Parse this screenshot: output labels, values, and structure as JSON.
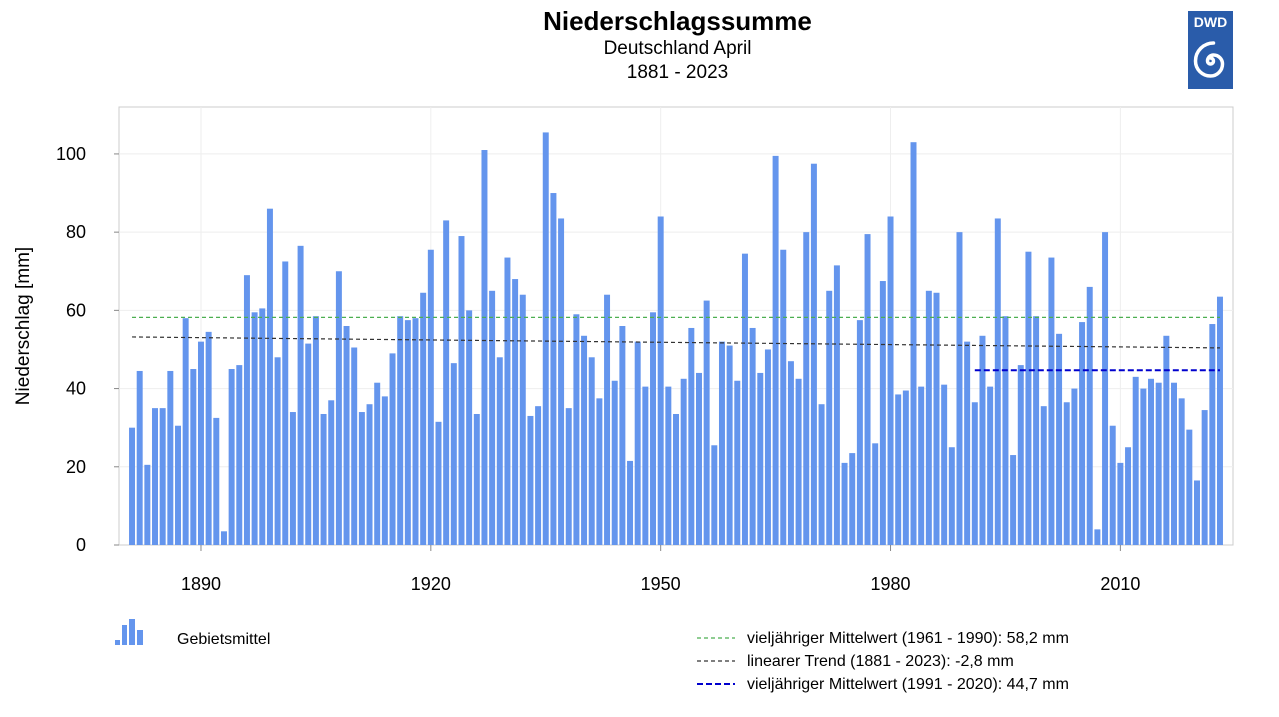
{
  "header": {
    "title": "Niederschlagssumme",
    "subtitle": "Deutschland April",
    "period": "1881 - 2023",
    "logo_text": "DWD"
  },
  "colors": {
    "bar": "#6495ed",
    "mean_1961_1990": "#4caf50",
    "trend": "#333333",
    "mean_1991_2020": "#0000cd",
    "logo_bg": "#2a5caa"
  },
  "legend": {
    "bars_label": "Gebietsmittel",
    "mean_1961_1990_label": "vieljähriger Mittelwert (1961 - 1990): 58,2 mm",
    "trend_label": "linearer Trend (1881 - 2023): -2,8 mm",
    "mean_1991_2020_label": "vieljähriger Mittelwert (1991 - 2020): 44,7 mm"
  },
  "chart_data": {
    "type": "bar",
    "title": "Niederschlagssumme",
    "subtitle": "Deutschland April 1881 - 2023",
    "ylabel": "Niederschlag [mm]",
    "xlabel": "",
    "ylim": [
      0,
      112
    ],
    "xlim": [
      1879.3,
      2024.7
    ],
    "yticks": [
      0,
      20,
      40,
      60,
      80,
      100
    ],
    "xticks": [
      1890,
      1920,
      1950,
      1980,
      2010
    ],
    "grid": true,
    "x_start": 1881,
    "values": [
      30,
      44.5,
      20.5,
      35,
      35,
      44.5,
      30.5,
      58,
      45,
      52,
      54.5,
      32.5,
      3.5,
      45,
      46,
      69,
      59.5,
      60.5,
      86,
      48,
      72.5,
      34,
      76.5,
      51.5,
      58.5,
      33.5,
      37,
      70,
      56,
      50.5,
      34,
      36,
      41.5,
      38,
      49,
      58.5,
      57.5,
      58,
      64.5,
      75.5,
      31.5,
      83,
      46.5,
      79,
      60,
      33.5,
      101,
      65,
      48,
      73.5,
      68,
      64,
      33,
      35.5,
      105.5,
      90,
      83.5,
      35,
      59,
      53.5,
      48,
      37.5,
      64,
      42,
      56,
      21.5,
      52,
      40.5,
      59.5,
      84,
      40.5,
      33.5,
      42.5,
      55.5,
      44,
      62.5,
      25.5,
      52,
      51,
      42,
      74.5,
      55.5,
      44,
      50,
      99.5,
      75.5,
      47,
      42.5,
      80,
      97.5,
      36,
      65,
      71.5,
      21,
      23.5,
      57.5,
      79.5,
      26,
      67.5,
      84,
      38.5,
      39.5,
      103,
      40.5,
      65,
      64.5,
      41,
      25,
      80,
      52,
      36.5,
      53.5,
      40.5,
      83.5,
      58.5,
      23,
      46,
      75,
      58.5,
      35.5,
      73.5,
      54,
      36.5,
      40,
      57,
      66,
      4,
      80,
      30.5,
      21,
      25,
      43,
      40,
      42.5,
      41.5,
      53.5,
      41.5,
      37.5,
      29.5,
      16.5,
      34.5,
      56.5,
      63.5
    ],
    "reference_lines": [
      {
        "name": "vieljähriger Mittelwert (1961 - 1990)",
        "value": 58.2,
        "x_range": [
          1881,
          2023
        ],
        "style": "dashed"
      },
      {
        "name": "linearer Trend (1881 - 2023)",
        "start_value": 53.2,
        "end_value": 50.4,
        "change": -2.8,
        "x_range": [
          1881,
          2023
        ],
        "style": "dashed"
      },
      {
        "name": "vieljähriger Mittelwert (1991 - 2020)",
        "value": 44.7,
        "x_range": [
          1991,
          2023
        ],
        "style": "dashed"
      }
    ]
  }
}
